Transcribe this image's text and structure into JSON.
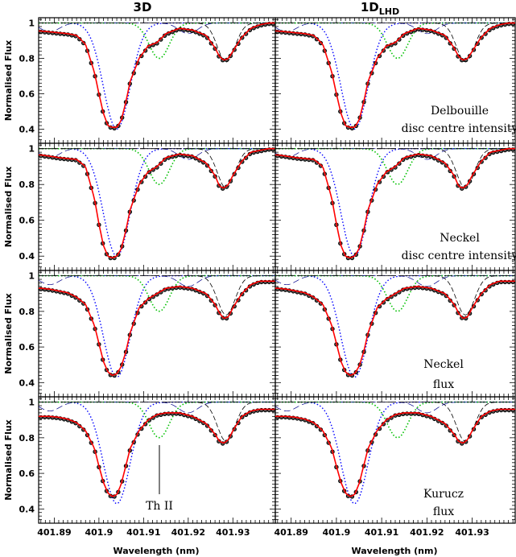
{
  "columns": [
    "3D",
    "1D"
  ],
  "column_subscript": [
    "",
    "LHD"
  ],
  "ylabel": "Normalised Flux",
  "xlabel": "Wavelength (nm)",
  "x_ticks": [
    401.89,
    401.9,
    401.91,
    401.92,
    401.93
  ],
  "x_tick_labels": [
    "401.89",
    "401.9",
    "401.91",
    "401.92",
    "401.93"
  ],
  "y_ticks": [
    0.4,
    0.6,
    0.8,
    1.0
  ],
  "y_tick_labels": [
    "0.4",
    "0.6",
    "0.8",
    "1"
  ],
  "colors": {
    "observed": "#000000",
    "model": "#ff0000",
    "blend_blue": "#0000ff",
    "blend_green": "#00c000",
    "blend_dash": "#000000"
  },
  "panels": [
    {
      "row": 0,
      "annotation": [
        "Delbouille",
        "disc centre intensity"
      ]
    },
    {
      "row": 1,
      "annotation": [
        "Neckel",
        "disc centre intensity"
      ]
    },
    {
      "row": 2,
      "annotation": [
        "Neckel",
        "flux"
      ]
    },
    {
      "row": 3,
      "annotation": [
        "Kurucz",
        "flux"
      ]
    }
  ],
  "line_marker": "Th II",
  "chart_data": {
    "type": "line",
    "xlim": [
      401.8865,
      401.9395
    ],
    "ylim": [
      0.32,
      1.03
    ],
    "x": [
      401.887,
      401.889,
      401.891,
      401.893,
      401.895,
      401.897,
      401.899,
      401.9,
      401.901,
      401.902,
      401.903,
      401.904,
      401.905,
      401.906,
      401.907,
      401.909,
      401.911,
      401.913,
      401.915,
      401.918,
      401.921,
      401.924,
      401.926,
      401.927,
      401.928,
      401.929,
      401.93,
      401.932,
      401.934,
      401.936,
      401.938,
      401.939
    ],
    "series": [
      {
        "panel": "row1",
        "values": [
          0.955,
          0.95,
          0.945,
          0.94,
          0.93,
          0.88,
          0.72,
          0.6,
          0.49,
          0.42,
          0.41,
          0.41,
          0.45,
          0.55,
          0.67,
          0.8,
          0.87,
          0.89,
          0.94,
          0.97,
          0.96,
          0.93,
          0.86,
          0.81,
          0.79,
          0.8,
          0.84,
          0.92,
          0.97,
          0.99,
          1.0,
          1.0
        ]
      },
      {
        "panel": "row2",
        "values": [
          0.965,
          0.958,
          0.95,
          0.945,
          0.94,
          0.9,
          0.72,
          0.58,
          0.46,
          0.4,
          0.39,
          0.4,
          0.44,
          0.54,
          0.66,
          0.8,
          0.87,
          0.9,
          0.95,
          0.97,
          0.96,
          0.92,
          0.85,
          0.79,
          0.78,
          0.8,
          0.85,
          0.93,
          0.98,
          0.99,
          1.0,
          1.0
        ]
      },
      {
        "panel": "row3",
        "values": [
          0.93,
          0.925,
          0.915,
          0.905,
          0.88,
          0.84,
          0.72,
          0.62,
          0.52,
          0.46,
          0.44,
          0.45,
          0.49,
          0.57,
          0.68,
          0.82,
          0.87,
          0.9,
          0.93,
          0.94,
          0.93,
          0.9,
          0.84,
          0.79,
          0.76,
          0.77,
          0.82,
          0.9,
          0.95,
          0.97,
          0.97,
          0.97
        ]
      },
      {
        "panel": "row4",
        "values": [
          0.92,
          0.92,
          0.915,
          0.905,
          0.885,
          0.84,
          0.74,
          0.64,
          0.55,
          0.49,
          0.47,
          0.48,
          0.54,
          0.64,
          0.74,
          0.84,
          0.9,
          0.93,
          0.94,
          0.94,
          0.92,
          0.88,
          0.82,
          0.78,
          0.77,
          0.79,
          0.84,
          0.92,
          0.95,
          0.96,
          0.96,
          0.96
        ]
      }
    ]
  }
}
